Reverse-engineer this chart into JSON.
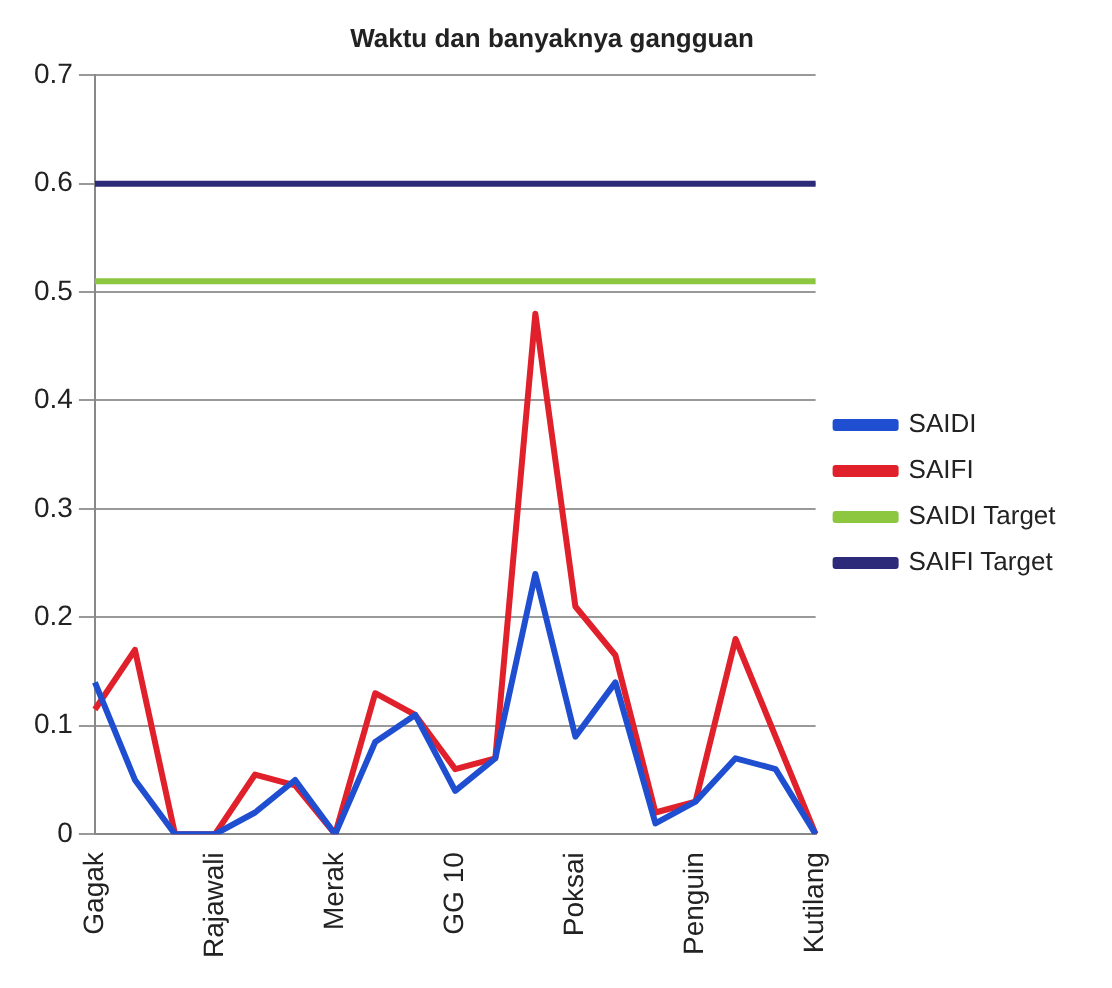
{
  "chart_data": {
    "type": "line",
    "title": "Waktu dan banyaknya gangguan",
    "categories": [
      "Gagak",
      null,
      null,
      "Rajawali",
      null,
      null,
      "Merak",
      null,
      null,
      "GG 10",
      null,
      null,
      "Poksai",
      null,
      null,
      "Penguin",
      null,
      null,
      "Kutilang"
    ],
    "series": [
      {
        "name": "SAIDI",
        "color": "#1f4fd0",
        "values": [
          0.14,
          0.05,
          0,
          0,
          0.02,
          0.05,
          0,
          0.085,
          0.11,
          0.04,
          0.07,
          0.24,
          0.09,
          0.14,
          0.01,
          0.03,
          0.07,
          0.06,
          0
        ]
      },
      {
        "name": "SAIFI",
        "color": "#e0202a",
        "values": [
          0.115,
          0.17,
          0,
          0,
          0.055,
          0.045,
          0,
          0.13,
          0.11,
          0.06,
          0.07,
          0.48,
          0.21,
          0.165,
          0.02,
          0.03,
          0.18,
          0.09,
          0
        ]
      },
      {
        "name": "SAIDI Target",
        "color": "#8dc63f",
        "values": [
          0.51,
          0.51,
          0.51,
          0.51,
          0.51,
          0.51,
          0.51,
          0.51,
          0.51,
          0.51,
          0.51,
          0.51,
          0.51,
          0.51,
          0.51,
          0.51,
          0.51,
          0.51,
          0.51
        ]
      },
      {
        "name": "SAIFI Target",
        "color": "#2e2a7a",
        "values": [
          0.6,
          0.6,
          0.6,
          0.6,
          0.6,
          0.6,
          0.6,
          0.6,
          0.6,
          0.6,
          0.6,
          0.6,
          0.6,
          0.6,
          0.6,
          0.6,
          0.6,
          0.6,
          0.6
        ]
      }
    ],
    "ylim": [
      0,
      0.7
    ],
    "yticks": [
      0,
      0.1,
      0.2,
      0.3,
      0.4,
      0.5,
      0.6,
      0.7
    ],
    "grid": "y",
    "legend": "right",
    "marker": "none",
    "line_style": "solid"
  }
}
